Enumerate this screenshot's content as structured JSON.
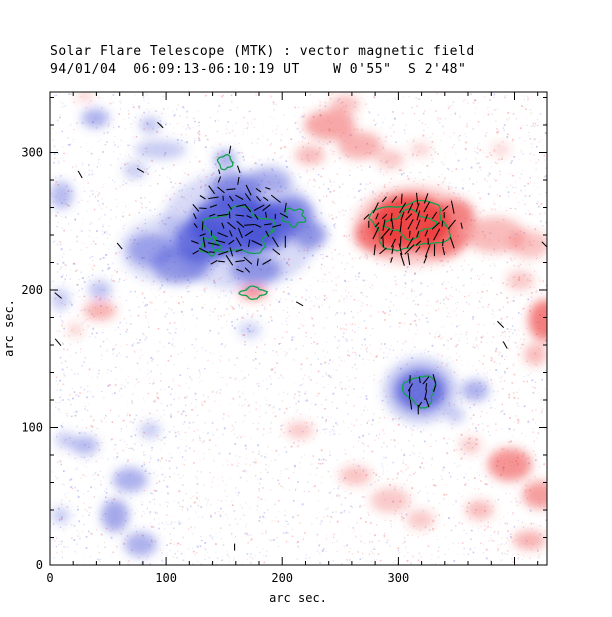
{
  "window": {
    "background": "#ffffff"
  },
  "chart_data": {
    "type": "heatmap",
    "title": "Solar Flare Telescope (MTK) : vector magnetic field",
    "subtitle": "94/01/04  06:09:13-06:10:19 UT    W 0'55\"  S 2'48\"",
    "xlabel": "arc sec.",
    "ylabel": "arc sec.",
    "xlim": [
      0,
      428
    ],
    "ylim": [
      0,
      344
    ],
    "x_ticks": [
      0,
      100,
      200,
      300
    ],
    "y_ticks": [
      0,
      100,
      200,
      300
    ],
    "minor_tick_step": 20,
    "grid": false,
    "legend_position": "none",
    "polarity_colors": {
      "positive": "#ee3b3b",
      "negative": "#4953d6",
      "contour": "#14a14e",
      "vector": "#000000",
      "frame": "#000000"
    },
    "blobs": {
      "negative": [
        [
          159,
          247,
          39,
          22,
          0.85
        ],
        [
          133,
          236,
          26,
          16,
          0.7
        ],
        [
          185,
          247,
          26,
          18,
          0.75
        ],
        [
          159,
          272,
          22,
          12,
          0.6
        ],
        [
          207,
          255,
          19,
          13,
          0.6
        ],
        [
          224,
          240,
          15,
          10,
          0.5
        ],
        [
          112,
          218,
          24,
          13,
          0.5
        ],
        [
          86,
          229,
          19,
          12,
          0.45
        ],
        [
          177,
          215,
          22,
          10,
          0.5
        ],
        [
          151,
          295,
          10,
          7,
          0.45
        ],
        [
          164,
          244,
          69,
          44,
          0.22
        ],
        [
          103,
          229,
          43,
          25,
          0.18
        ],
        [
          190,
          280,
          18,
          10,
          0.35
        ],
        [
          39,
          325,
          12,
          7,
          0.45
        ],
        [
          86,
          320,
          9,
          6,
          0.35
        ],
        [
          95,
          302,
          22,
          7,
          0.3
        ],
        [
          73,
          287,
          10,
          6,
          0.3
        ],
        [
          10,
          269,
          10,
          10,
          0.4
        ],
        [
          9,
          193,
          8,
          8,
          0.3
        ],
        [
          43,
          200,
          10,
          7,
          0.35
        ],
        [
          172,
          171,
          10,
          6,
          0.25
        ],
        [
          69,
          62,
          15,
          9,
          0.45
        ],
        [
          56,
          36,
          12,
          12,
          0.5
        ],
        [
          78,
          15,
          14,
          9,
          0.45
        ],
        [
          30,
          87,
          12,
          7,
          0.4
        ],
        [
          13,
          91,
          8,
          6,
          0.3
        ],
        [
          86,
          98,
          9,
          6,
          0.3
        ],
        [
          9,
          36,
          8,
          6,
          0.3
        ],
        [
          319,
          127,
          22,
          15,
          0.75
        ],
        [
          319,
          127,
          32,
          24,
          0.3
        ],
        [
          366,
          127,
          12,
          8,
          0.45
        ],
        [
          349,
          109,
          8,
          6,
          0.3
        ]
      ],
      "positive": [
        [
          310,
          249,
          34,
          20,
          0.9
        ],
        [
          284,
          240,
          22,
          13,
          0.6
        ],
        [
          336,
          236,
          22,
          12,
          0.55
        ],
        [
          349,
          255,
          17,
          11,
          0.5
        ],
        [
          314,
          247,
          52,
          29,
          0.28
        ],
        [
          383,
          240,
          26,
          13,
          0.35
        ],
        [
          413,
          233,
          17,
          10,
          0.3
        ],
        [
          241,
          320,
          22,
          11,
          0.45
        ],
        [
          267,
          305,
          19,
          10,
          0.4
        ],
        [
          224,
          298,
          13,
          7,
          0.35
        ],
        [
          293,
          295,
          12,
          7,
          0.28
        ],
        [
          254,
          335,
          13,
          7,
          0.3
        ],
        [
          30,
          341,
          8,
          4,
          0.22
        ],
        [
          43,
          185,
          14,
          7,
          0.4
        ],
        [
          22,
          171,
          7,
          5,
          0.22
        ],
        [
          175,
          198,
          12,
          5,
          0.55
        ],
        [
          215,
          98,
          12,
          6,
          0.28
        ],
        [
          263,
          65,
          14,
          7,
          0.3
        ],
        [
          293,
          47,
          17,
          9,
          0.28
        ],
        [
          319,
          33,
          12,
          7,
          0.28
        ],
        [
          426,
          178,
          14,
          15,
          0.65
        ],
        [
          418,
          153,
          10,
          8,
          0.35
        ],
        [
          396,
          73,
          19,
          12,
          0.55
        ],
        [
          422,
          51,
          15,
          10,
          0.5
        ],
        [
          370,
          40,
          12,
          7,
          0.35
        ],
        [
          413,
          18,
          14,
          7,
          0.4
        ],
        [
          362,
          87,
          9,
          6,
          0.28
        ],
        [
          405,
          207,
          12,
          7,
          0.28
        ],
        [
          319,
          302,
          9,
          5,
          0.22
        ],
        [
          388,
          302,
          8,
          5,
          0.2
        ]
      ]
    },
    "contours": [
      [
        163,
        243,
        28,
        16,
        0.18
      ],
      [
        138,
        232,
        8,
        6,
        0.25
      ],
      [
        151,
        293,
        6,
        5,
        0.15
      ],
      [
        210,
        253,
        9,
        6,
        0.2
      ],
      [
        310,
        247,
        33,
        17,
        0.15
      ],
      [
        310,
        248,
        18,
        9,
        0.25
      ],
      [
        319,
        127,
        13,
        11,
        0.18
      ],
      [
        175,
        198,
        10,
        4,
        0.2
      ]
    ],
    "vector_regions": [
      [
        163,
        246,
        46,
        34,
        9,
        -30,
        70,
        9
      ],
      [
        310,
        246,
        44,
        26,
        8.5,
        75,
        35,
        10
      ],
      [
        321,
        126,
        17,
        15,
        8,
        80,
        30,
        9
      ],
      [
        151,
        284,
        14,
        10,
        10,
        85,
        25,
        8
      ]
    ],
    "single_vectors": [
      [
        7,
        196,
        -40,
        9
      ],
      [
        7,
        162,
        -50,
        9
      ],
      [
        26,
        284,
        -60,
        8
      ],
      [
        78,
        287,
        -30,
        8
      ],
      [
        95,
        320,
        -45,
        8
      ],
      [
        155,
        302,
        80,
        8
      ],
      [
        60,
        232,
        -50,
        8
      ],
      [
        388,
        175,
        -45,
        9
      ],
      [
        392,
        160,
        -60,
        8
      ],
      [
        159,
        13,
        90,
        7
      ],
      [
        426,
        233,
        -45,
        8
      ],
      [
        215,
        190,
        -30,
        8
      ]
    ],
    "noise": {
      "count": 5200
    }
  }
}
